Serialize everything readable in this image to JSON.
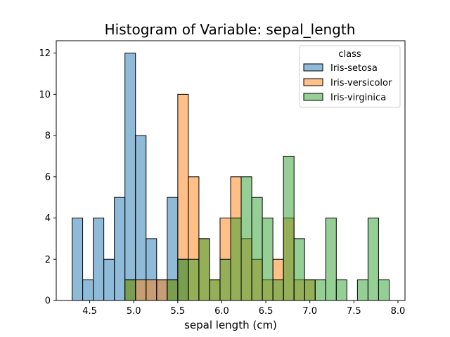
{
  "chart_data": {
    "type": "bar",
    "subtype": "overlapping-histogram",
    "title": "Histogram of Variable: sepal_length",
    "xlabel": "sepal length (cm)",
    "ylabel": "",
    "xlim": [
      4.12,
      8.08
    ],
    "ylim": [
      0,
      12.6
    ],
    "x_ticks": [
      4.5,
      5.0,
      5.5,
      6.0,
      6.5,
      7.0,
      7.5,
      8.0
    ],
    "x_tick_labels": [
      "4.5",
      "5.0",
      "5.5",
      "6.0",
      "6.5",
      "7.0",
      "7.5",
      "8.0"
    ],
    "y_ticks": [
      0,
      2,
      4,
      6,
      8,
      10,
      12
    ],
    "y_tick_labels": [
      "0",
      "2",
      "4",
      "6",
      "8",
      "10",
      "12"
    ],
    "grid": false,
    "bin_start": 4.3,
    "bin_width": 0.12,
    "bin_count": 30,
    "legend": {
      "title": "class",
      "position": "top-right"
    },
    "series": [
      {
        "name": "Iris-setosa",
        "color": "#1f77b4",
        "values": [
          4,
          1,
          4,
          2,
          5,
          12,
          8,
          3,
          1,
          5,
          2,
          0,
          0,
          0,
          0,
          0,
          0,
          0,
          0,
          0,
          0,
          0,
          0,
          0,
          0,
          0,
          0,
          0,
          0,
          0
        ]
      },
      {
        "name": "Iris-versicolor",
        "color": "#ff7f0e",
        "values": [
          0,
          0,
          0,
          0,
          0,
          1,
          1,
          1,
          1,
          1,
          10,
          6,
          3,
          1,
          4,
          6,
          3,
          2,
          1,
          2,
          4,
          1,
          1,
          0,
          0,
          0,
          0,
          0,
          0,
          0
        ]
      },
      {
        "name": "Iris-virginica",
        "color": "#2ca02c",
        "values": [
          0,
          0,
          0,
          0,
          0,
          1,
          0,
          0,
          0,
          1,
          2,
          2,
          3,
          1,
          2,
          4,
          6,
          5,
          4,
          1,
          7,
          3,
          1,
          1,
          4,
          1,
          0,
          1,
          4,
          1
        ]
      }
    ]
  }
}
